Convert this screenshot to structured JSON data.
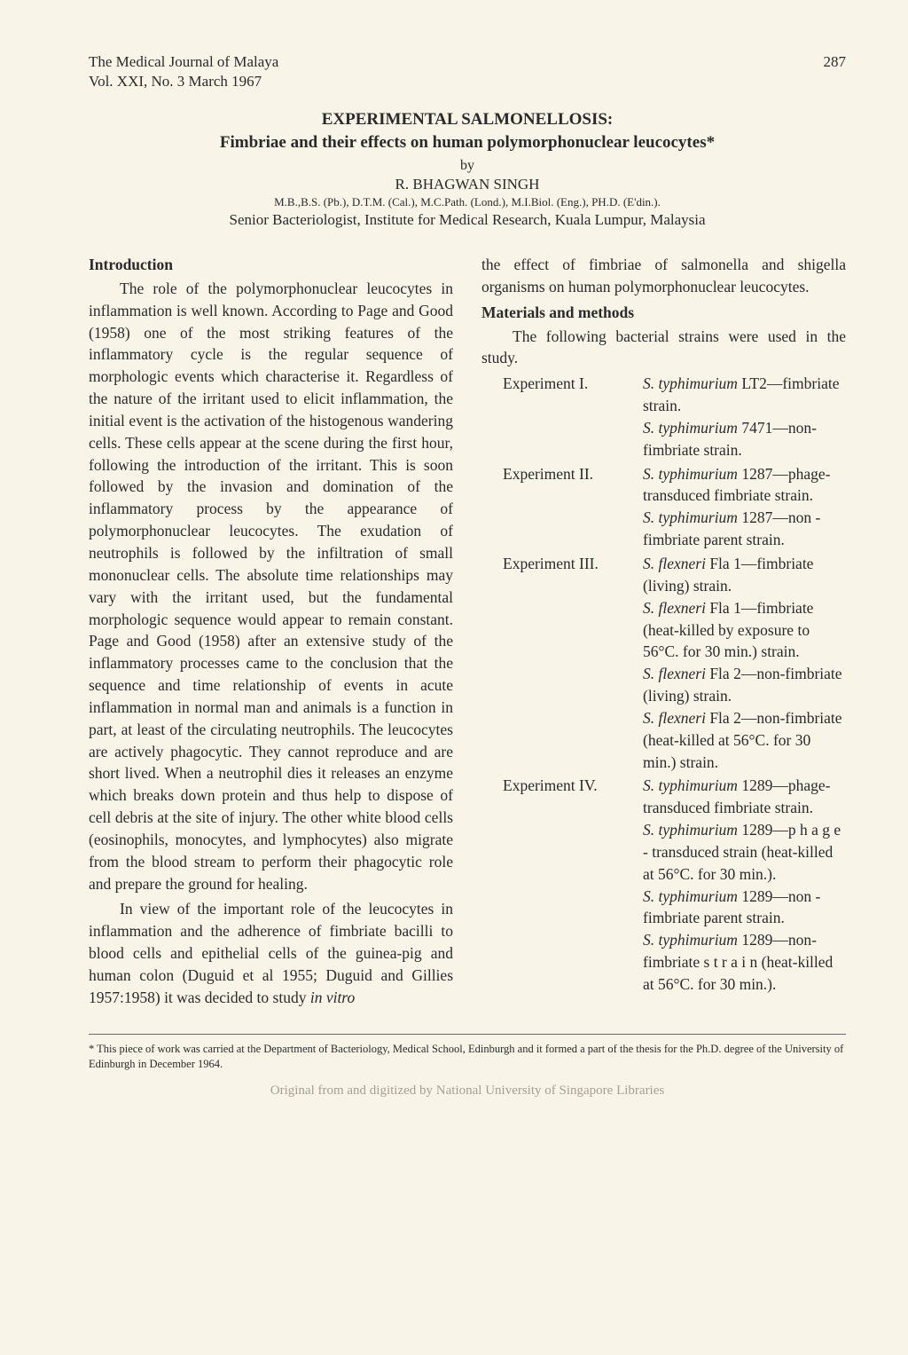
{
  "header": {
    "journal": "The Medical Journal of Malaya",
    "pageno": "287",
    "issue": "Vol. XXI, No. 3 March 1967"
  },
  "title": {
    "main": "EXPERIMENTAL SALMONELLOSIS:",
    "sub": "Fimbriae and their effects on human polymorphonuclear leucocytes*",
    "by": "by",
    "author": "R. BHAGWAN SINGH",
    "creds": "M.B.,B.S. (Pb.), D.T.M. (Cal.), M.C.Path. (Lond.), M.I.Biol. (Eng.), PH.D. (E'din.).",
    "affiliation": "Senior Bacteriologist, Institute for Medical Research, Kuala Lumpur, Malaysia"
  },
  "left": {
    "introHead": "Introduction",
    "p1": "The role of the polymorphonuclear leucocytes in inflammation is well known. According to Page and Good (1958) one of the most striking features of the inflammatory cycle is the regular sequence of morphologic events which characterise it. Regardless of the nature of the irritant used to elicit inflammation, the initial event is the activation of the histogenous wandering cells. These cells appear at the scene during the first hour, following the introduction of the irritant. This is soon followed by the invasion and domination of the inflammatory process by the appearance of polymorphonuclear leucocytes. The exudation of neutrophils is followed by the infiltration of small mononuclear cells. The absolute time relationships may vary with the irritant used, but the fundamental morphologic sequence would appear to remain constant. Page and Good (1958) after an extensive study of the inflammatory processes came to the conclusion that the sequence and time relationship of events in acute inflammation in normal man and animals is a function in part, at least of the circulating neutrophils. The leucocytes are actively phagocytic. They cannot reproduce and are short lived. When a neutrophil dies it releases an enzyme which breaks down protein and thus help to dispose of cell debris at the site of injury. The other white blood cells (eosinophils, monocytes, and lymphocytes) also migrate from the blood stream to perform their phagocytic role and prepare the ground for healing.",
    "p2a": "In view of the important role of the leucocytes in inflammation and the adherence of fimbriate bacilli to blood cells and epithelial cells of the guinea-pig and human colon (Duguid et al 1955; Duguid and Gillies 1957:1958) it was decided to study ",
    "p2_invitro": "in vitro"
  },
  "right": {
    "p_cont": "the effect of fimbriae of salmonella and shigella organisms on human polymorphonuclear leucocytes.",
    "matHead": "Materials and methods",
    "mat_intro": "The following bacterial strains were used in the study.",
    "exp1_label": "Experiment   I.",
    "exp1_a1": "S. typhimurium",
    "exp1_a2": " LT2—fimbriate strain.",
    "exp1_b1": "S. typhimurium",
    "exp1_b2": " 7471—non-fimbriate strain.",
    "exp2_label": "Experiment  II.",
    "exp2_a1": "S. typhimurium",
    "exp2_a2": " 1287—phage-transduced fimbriate strain.",
    "exp2_b1": "S. typhimurium",
    "exp2_b2": " 1287—non - fimbriate parent strain.",
    "exp3_label": "Experiment III.",
    "exp3_a1": "S. flexneri",
    "exp3_a2": " Fla 1—fimbriate (living) strain.",
    "exp3_b1": "S. flexneri",
    "exp3_b2": " Fla 1—fimbriate (heat-killed by exposure to 56°C. for 30 min.) strain.",
    "exp3_c1": "S. flexneri",
    "exp3_c2": " Fla 2—non-fimbriate (living) strain.",
    "exp3_d1": "S. flexneri",
    "exp3_d2": " Fla 2—non-fimbriate (heat-killed at 56°C. for 30 min.) strain.",
    "exp4_label": "Experiment IV.",
    "exp4_a1": "S. typhimurium",
    "exp4_a2": " 1289—phage-transduced fimbriate strain.",
    "exp4_b1": "S. typhimurium",
    "exp4_b2": " 1289—p h a g e - transduced strain (heat-killed at 56°C. for 30 min.).",
    "exp4_c1": "S. typhimurium",
    "exp4_c2": " 1289—non - fimbriate parent strain.",
    "exp4_d1": "S. typhimurium",
    "exp4_d2": " 1289—non-fimbriate s t r a i n (heat-killed at 56°C. for 30 min.)."
  },
  "footnote": "* This piece of work was carried at the Department of Bacteriology, Medical School, Edinburgh and it formed a part of the thesis for the Ph.D. degree of the University of Edinburgh in December 1964.",
  "digitized": "Original from and digitized by National University of Singapore Libraries"
}
